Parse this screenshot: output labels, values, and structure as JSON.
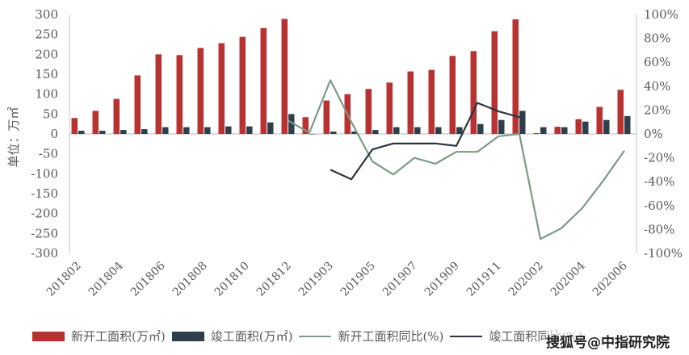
{
  "chart_data": {
    "type": "bar",
    "title": "",
    "ylabel": "单位：万㎡",
    "ylabel_right": "",
    "xlabel": "",
    "ylim": [
      -300,
      300
    ],
    "ylim_right": [
      -100,
      100
    ],
    "yticks": [
      "300",
      "250",
      "200",
      "150",
      "100",
      "50",
      "0",
      "-50",
      "-100",
      "-150",
      "-200",
      "-250",
      "-300"
    ],
    "yticks_right": [
      "100%",
      "80%",
      "60%",
      "40%",
      "20%",
      "0%",
      "-20%",
      "-40%",
      "-60%",
      "-80%",
      "-100%"
    ],
    "categories": [
      "201802",
      "201803",
      "201804",
      "201805",
      "201806",
      "201807",
      "201808",
      "201809",
      "201810",
      "201811",
      "201812",
      "201902",
      "201903",
      "201904",
      "201905",
      "201906",
      "201907",
      "201908",
      "201909",
      "201910",
      "201911",
      "201912",
      "202002",
      "202003",
      "202004",
      "202005",
      "202006"
    ],
    "xtick_labels": [
      "201802",
      "201804",
      "201806",
      "201808",
      "201810",
      "201812",
      "201903",
      "201905",
      "201907",
      "201909",
      "201911",
      "202002",
      "202004",
      "202006"
    ],
    "series": [
      {
        "name": "新开工面积(万㎡)",
        "type": "bar",
        "axis": "left",
        "color": "#B83232",
        "values": [
          40,
          58,
          88,
          147,
          200,
          198,
          216,
          228,
          244,
          266,
          289,
          42,
          84,
          100,
          113,
          129,
          157,
          161,
          196,
          208,
          258,
          288,
          2,
          18,
          37,
          68,
          111
        ]
      },
      {
        "name": "竣工面积(万㎡)",
        "type": "bar",
        "axis": "left",
        "color": "#2E3F4C",
        "values": [
          8,
          8,
          10,
          12,
          17,
          17,
          17,
          19,
          19,
          29,
          50,
          0,
          6,
          6,
          10,
          17,
          17,
          17,
          17,
          25,
          35,
          58,
          17,
          17,
          31,
          35,
          45
        ]
      },
      {
        "name": "新开工面积同比(%)",
        "type": "line",
        "axis": "right",
        "color": "#7C9A86",
        "values": [
          null,
          null,
          null,
          null,
          null,
          null,
          null,
          null,
          null,
          null,
          11,
          1,
          45,
          10,
          -23,
          -34,
          -20,
          -25,
          -15,
          -15,
          -2,
          0,
          -88,
          -79,
          -62,
          -39,
          -14
        ]
      },
      {
        "name": "竣工面积同比(%)",
        "type": "line",
        "axis": "right",
        "color": "#2B3440",
        "values": [
          null,
          null,
          null,
          null,
          null,
          null,
          null,
          null,
          null,
          null,
          null,
          null,
          -30,
          -38,
          -13,
          -8,
          -8,
          -8,
          -10,
          26,
          19,
          14,
          null,
          null,
          null,
          null,
          null
        ]
      }
    ],
    "legend_position": "bottom",
    "grid": false
  },
  "legend": {
    "items": [
      {
        "label": "新开工面积(万㎡)",
        "kind": "bar",
        "color": "#B83232"
      },
      {
        "label": "竣工面积(万㎡)",
        "kind": "bar",
        "color": "#2E3F4C"
      },
      {
        "label": "新开工面积同比(%)",
        "kind": "line",
        "color": "#7C9A86"
      },
      {
        "label": "竣工面积同比(%)",
        "kind": "line",
        "color": "#2B3440"
      }
    ]
  },
  "watermark": "搜狐号@中指研究院"
}
